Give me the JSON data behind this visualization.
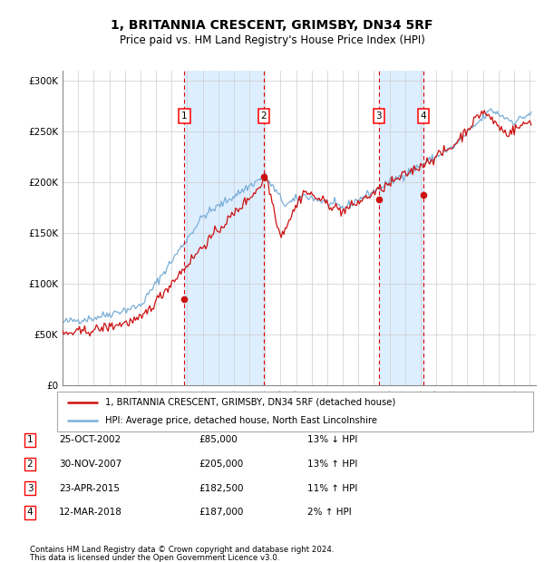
{
  "title": "1, BRITANNIA CRESCENT, GRIMSBY, DN34 5RF",
  "subtitle": "Price paid vs. HM Land Registry's House Price Index (HPI)",
  "legend_line1": "1, BRITANNIA CRESCENT, GRIMSBY, DN34 5RF (detached house)",
  "legend_line2": "HPI: Average price, detached house, North East Lincolnshire",
  "footer1": "Contains HM Land Registry data © Crown copyright and database right 2024.",
  "footer2": "This data is licensed under the Open Government Licence v3.0.",
  "hpi_color": "#7aaed6",
  "property_color": "#cc1111",
  "sale_color": "#cc1111",
  "vline_color": "#dd0000",
  "shade_color": "#ddeeff",
  "ylim": [
    0,
    310000
  ],
  "yticks": [
    0,
    50000,
    100000,
    150000,
    200000,
    250000,
    300000
  ],
  "ytick_labels": [
    "£0",
    "£50K",
    "£100K",
    "£150K",
    "£200K",
    "£250K",
    "£300K"
  ],
  "sales": [
    {
      "num": 1,
      "date": "25-OCT-2002",
      "year": 2002.82,
      "price": 85000,
      "pct": "13%",
      "dir": "↓"
    },
    {
      "num": 2,
      "date": "30-NOV-2007",
      "year": 2007.92,
      "price": 205000,
      "pct": "13%",
      "dir": "↑"
    },
    {
      "num": 3,
      "date": "23-APR-2015",
      "year": 2015.31,
      "price": 182500,
      "pct": "11%",
      "dir": "↑"
    },
    {
      "num": 4,
      "date": "12-MAR-2018",
      "year": 2018.19,
      "price": 187000,
      "pct": "2%",
      "dir": "↑"
    }
  ],
  "table_rows": [
    [
      "1",
      "25-OCT-2002",
      "£85,000",
      "13% ↓ HPI"
    ],
    [
      "2",
      "30-NOV-2007",
      "£205,000",
      "13% ↑ HPI"
    ],
    [
      "3",
      "23-APR-2015",
      "£182,500",
      "11% ↑ HPI"
    ],
    [
      "4",
      "12-MAR-2018",
      "£187,000",
      "2% ↑ HPI"
    ]
  ]
}
